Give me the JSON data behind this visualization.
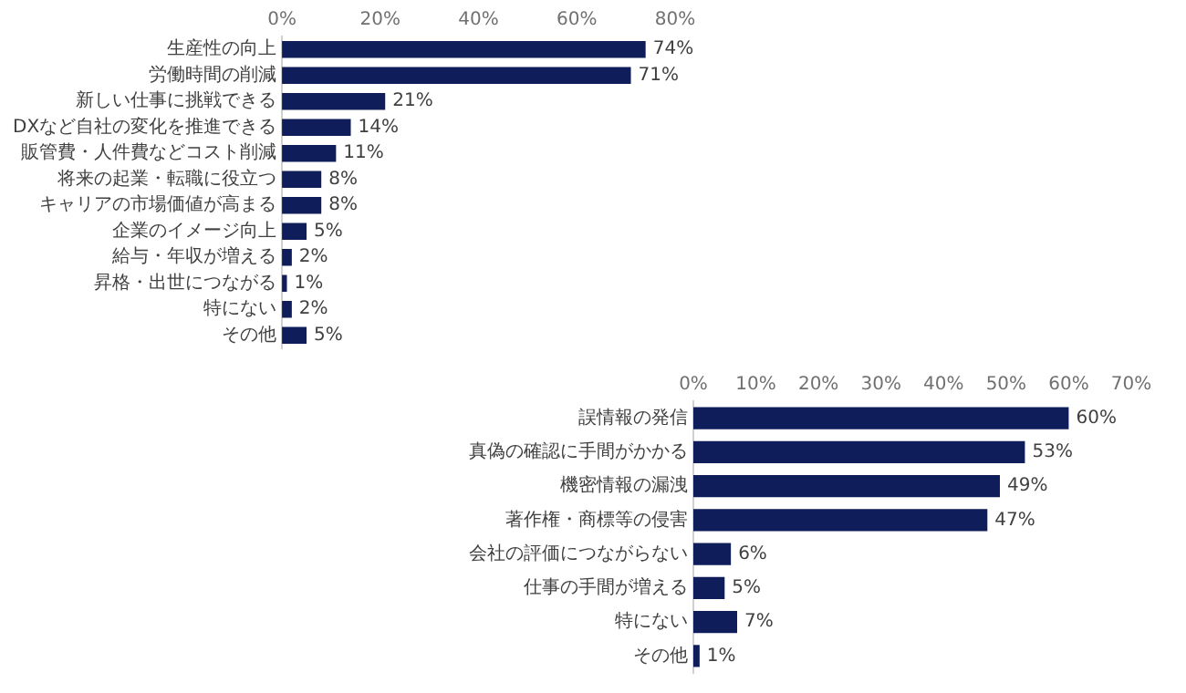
{
  "chart_data": [
    {
      "type": "bar",
      "orientation": "horizontal",
      "categories": [
        "生産性の向上",
        "労働時間の削減",
        "新しい仕事に挑戦できる",
        "DXなど自社の変化を推進できる",
        "販管費・人件費などコスト削減",
        "将来の起業・転職に役立つ",
        "キャリアの市場価値が高まる",
        "企業のイメージ向上",
        "給与・年収が増える",
        "昇格・出世につながる",
        "特にない",
        "その他"
      ],
      "values": [
        74,
        71,
        21,
        14,
        11,
        8,
        8,
        5,
        2,
        1,
        2,
        5
      ],
      "value_labels": [
        "74%",
        "71%",
        "21%",
        "14%",
        "11%",
        "8%",
        "8%",
        "5%",
        "2%",
        "1%",
        "2%",
        "5%"
      ],
      "color": "#0f1e5a",
      "xlim": [
        0,
        80
      ],
      "xticks": [
        {
          "value": 0,
          "label": "0%"
        },
        {
          "value": 20,
          "label": "20%"
        },
        {
          "value": 40,
          "label": "40%"
        },
        {
          "value": 60,
          "label": "60%"
        },
        {
          "value": 80,
          "label": "80%"
        }
      ],
      "grid": false,
      "legend": false
    },
    {
      "type": "bar",
      "orientation": "horizontal",
      "categories": [
        "誤情報の発信",
        "真偽の確認に手間がかかる",
        "機密情報の漏洩",
        "著作権・商標等の侵害",
        "会社の評価につながらない",
        "仕事の手間が増える",
        "特にない",
        "その他"
      ],
      "values": [
        60,
        53,
        49,
        47,
        6,
        5,
        7,
        1
      ],
      "value_labels": [
        "60%",
        "53%",
        "49%",
        "47%",
        "6%",
        "5%",
        "7%",
        "1%"
      ],
      "color": "#0f1e5a",
      "xlim": [
        0,
        70
      ],
      "xticks": [
        {
          "value": 0,
          "label": "0%"
        },
        {
          "value": 10,
          "label": "10%"
        },
        {
          "value": 20,
          "label": "20%"
        },
        {
          "value": 30,
          "label": "30%"
        },
        {
          "value": 40,
          "label": "40%"
        },
        {
          "value": 50,
          "label": "50%"
        },
        {
          "value": 60,
          "label": "60%"
        },
        {
          "value": 70,
          "label": "70%"
        }
      ],
      "grid": false,
      "legend": false
    }
  ]
}
